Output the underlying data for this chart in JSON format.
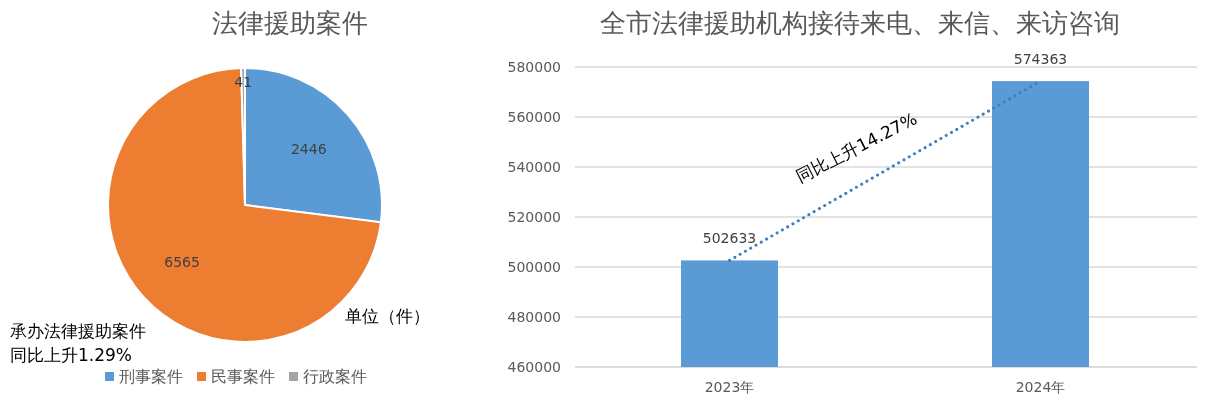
{
  "chart_data": [
    {
      "type": "pie",
      "title": "法律援助案件",
      "categories": [
        "刑事案件",
        "民事案件",
        "行政案件"
      ],
      "values": [
        2446,
        6565,
        41
      ],
      "colors": [
        "#5b9bd5",
        "#ed7d31",
        "#a5a5a5"
      ],
      "data_labels": true,
      "legend": "bottom",
      "annotations": [
        "承办法律援助案件",
        "同比上升1.29%",
        "单位（件）"
      ]
    },
    {
      "type": "bar",
      "title": "全市法律援助机构接待来电、来信、来访咨询",
      "categories": [
        "2023年",
        "2024年"
      ],
      "series": [
        {
          "type": "bar",
          "color": "#5b9bd5",
          "values": [
            502633,
            574363
          ],
          "value_labels": [
            "502633",
            "574363"
          ]
        },
        {
          "type": "line",
          "color": "#3f7fbf",
          "values": [
            502633,
            574363
          ],
          "line_style": "dotted"
        }
      ],
      "ylim": [
        460000,
        580000
      ],
      "yticks": [
        460000,
        480000,
        500000,
        520000,
        540000,
        560000,
        580000
      ],
      "grid": "y",
      "annotations": [
        "同比上升14.27%"
      ]
    }
  ]
}
